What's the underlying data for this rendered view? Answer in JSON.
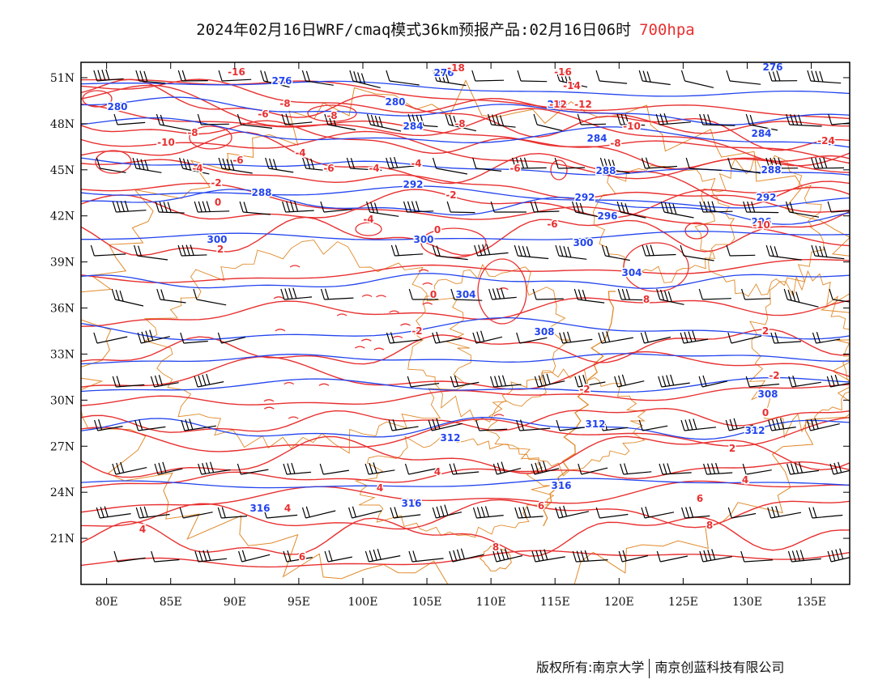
{
  "title": {
    "main": "2024年02月16日WRF/cmaq模式36km预报产品:02月16日06时",
    "level": "700hpa",
    "level_color": "#e83030"
  },
  "map": {
    "lon_range": [
      78,
      138
    ],
    "lat_range": [
      18,
      52
    ],
    "lon_ticks": [
      "80E",
      "85E",
      "90E",
      "95E",
      "100E",
      "105E",
      "110E",
      "115E",
      "120E",
      "125E",
      "130E",
      "135E"
    ],
    "lat_ticks": [
      "51N",
      "48N",
      "45N",
      "42N",
      "39N",
      "36N",
      "33N",
      "30N",
      "27N",
      "24N",
      "21N"
    ],
    "height_contour_color": "#2244ee",
    "temperature_contour_color": "#e83030",
    "boundary_color": "#e08a2a",
    "wind_barb_color": "#000000",
    "height_labels": [
      "276",
      "276",
      "276",
      "280",
      "280",
      "280",
      "284",
      "284",
      "284",
      "288",
      "288",
      "288",
      "292",
      "292",
      "292",
      "296",
      "296",
      "300",
      "300",
      "300",
      "304",
      "304",
      "308",
      "308",
      "312",
      "312",
      "312",
      "316",
      "316",
      "316"
    ],
    "temperature_labels": [
      "-18",
      "-16",
      "-16",
      "-14",
      "-12",
      "-12",
      "-10",
      "-10",
      "-10",
      "-8",
      "-8",
      "-8",
      "-8",
      "-8",
      "-6",
      "-6",
      "-6",
      "-6",
      "-6",
      "-4",
      "-4",
      "-4",
      "-4",
      "-4",
      "-2",
      "-2",
      "-2",
      "-2",
      "-2",
      "0",
      "0",
      "0",
      "0",
      "2",
      "2",
      "2",
      "4",
      "4",
      "4",
      "4",
      "4",
      "6",
      "6",
      "6",
      "8",
      "8",
      "8",
      "-24"
    ]
  },
  "footer": {
    "copyright": "版权所有:南京大学",
    "company": "南京创蓝科技有限公司"
  }
}
